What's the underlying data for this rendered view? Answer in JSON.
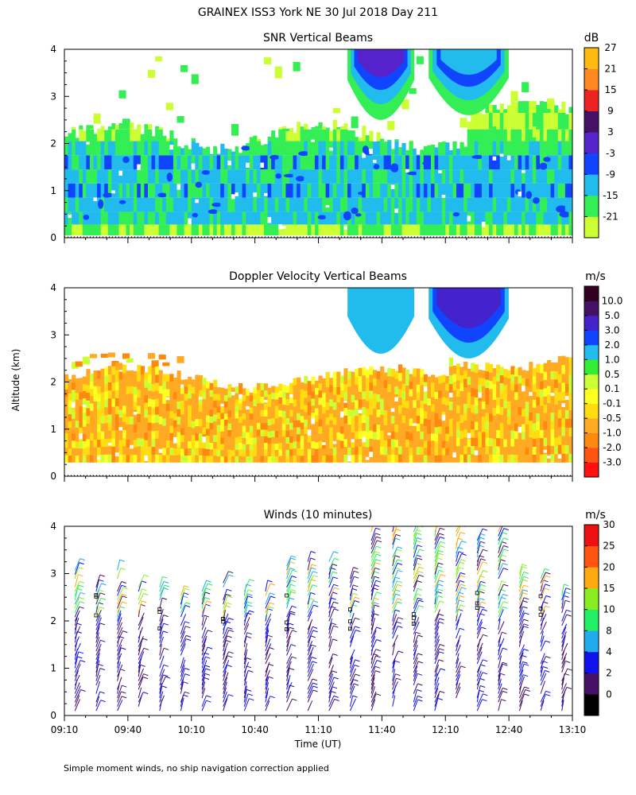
{
  "page": {
    "title": "GRAINEX ISS3 York NE  30 Jul 2018 Day 211",
    "ylabel": "Altitude (km)",
    "xlabel": "Time (UT)",
    "footnote": "Simple moment winds, no ship navigation correction applied"
  },
  "chart_data": [
    {
      "id": "snr",
      "type": "heatmap",
      "title": "SNR Vertical Beams",
      "xlabel": "Time (UT)",
      "ylabel": "Altitude (km)",
      "xlim": [
        "09:10",
        "13:10"
      ],
      "ylim": [
        0,
        4
      ],
      "yticks": [
        "0",
        "1",
        "2",
        "3",
        "4"
      ],
      "colorbar": {
        "unit": "dB",
        "levels": [
          "-21",
          "-15",
          "-9",
          "-3",
          "3",
          "9",
          "15",
          "21",
          "27"
        ],
        "colors": [
          "#ccff33",
          "#33ee55",
          "#22bbee",
          "#1144ff",
          "#5522cc",
          "#441166",
          "#ee2222",
          "#ff8822",
          "#ffbb11"
        ]
      },
      "features": [
        {
          "name": "main-echo-layer",
          "altitude_km": [
            0.3,
            2.2
          ],
          "value_range_db": [
            -15,
            -3
          ]
        },
        {
          "name": "upper-echo",
          "altitude_km": [
            2.2,
            3.0
          ],
          "value_range_db": [
            -21,
            -15
          ]
        },
        {
          "name": "deep-cloud-1",
          "time": [
            "11:20",
            "11:55"
          ],
          "altitude_km": [
            2.5,
            4.0
          ],
          "value_range_db": [
            -9,
            9
          ]
        },
        {
          "name": "deep-cloud-2",
          "time": [
            "12:00",
            "12:40"
          ],
          "altitude_km": [
            2.6,
            4.0
          ],
          "value_range_db": [
            -9,
            3
          ]
        }
      ]
    },
    {
      "id": "doppler",
      "type": "heatmap",
      "title": "Doppler Velocity Vertical Beams",
      "xlabel": "Time (UT)",
      "ylabel": "Altitude (km)",
      "xlim": [
        "09:10",
        "13:10"
      ],
      "ylim": [
        0,
        4
      ],
      "yticks": [
        "0",
        "1",
        "2",
        "3",
        "4"
      ],
      "colorbar": {
        "unit": "m/s",
        "levels": [
          "-3.0",
          "-2.0",
          "-1.0",
          "-0.5",
          "-0.1",
          "0.1",
          "0.5",
          "1.0",
          "2.0",
          "3.0",
          "5.0",
          "10.0"
        ],
        "colors": [
          "#ff1111",
          "#ff5511",
          "#ff8811",
          "#ffaa22",
          "#ffdd11",
          "#ffff22",
          "#ccff33",
          "#33ee33",
          "#22bbee",
          "#1144ff",
          "#4422cc",
          "#441166",
          "#330022"
        ]
      },
      "features": [
        {
          "name": "main-layer",
          "altitude_km": [
            0.3,
            2.2
          ],
          "value_range_ms": [
            -1.0,
            -0.1
          ]
        },
        {
          "name": "cloud-fall-1",
          "time": [
            "11:20",
            "11:55"
          ],
          "altitude_km": [
            2.6,
            4.0
          ],
          "value_range_ms": [
            1.0,
            2.0
          ]
        },
        {
          "name": "cloud-fall-2",
          "time": [
            "12:00",
            "12:40"
          ],
          "altitude_km": [
            2.5,
            4.0
          ],
          "value_range_ms": [
            1.0,
            3.0
          ]
        }
      ]
    },
    {
      "id": "winds",
      "type": "scatter",
      "title": "Winds (10 minutes)",
      "xlabel": "Time (UT)",
      "ylabel": "Altitude (km)",
      "xlim": [
        "09:10",
        "13:10"
      ],
      "ylim": [
        0,
        4
      ],
      "yticks": [
        "0",
        "1",
        "2",
        "3",
        "4"
      ],
      "xticks": [
        "09:10",
        "09:40",
        "10:10",
        "10:40",
        "11:10",
        "11:40",
        "12:10",
        "12:40",
        "13:10"
      ],
      "profile_interval_min": 10,
      "profile_count": 24,
      "marker": "wind-barb",
      "colorbar": {
        "unit": "m/s",
        "levels": [
          "0",
          "2",
          "4",
          "8",
          "10",
          "15",
          "20",
          "25",
          "30"
        ],
        "colors": [
          "#000000",
          "#441166",
          "#1111ee",
          "#22aaee",
          "#22ee66",
          "#88ee22",
          "#ffaa11",
          "#ff5511",
          "#ee1111"
        ]
      }
    }
  ]
}
